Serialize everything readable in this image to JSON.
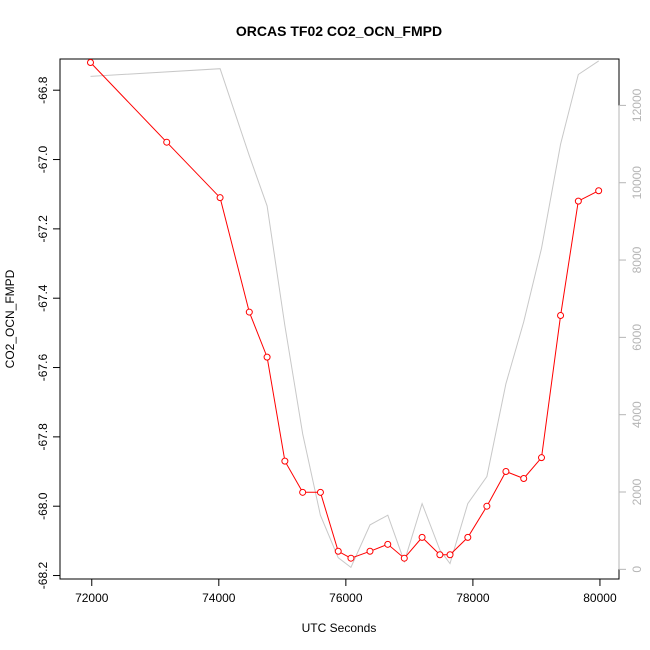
{
  "chart_data": {
    "type": "line",
    "title": "ORCAS TF02 CO2_OCN_FMPD",
    "xlabel": "UTC Seconds",
    "ylabel": "CO2_OCN_FMPD",
    "xlim": [
      71500,
      80300
    ],
    "ylim": [
      -68.21,
      -66.71
    ],
    "y2lim": [
      -250,
      13200
    ],
    "x_ticks": [
      72000,
      74000,
      76000,
      78000,
      80000
    ],
    "y_ticks": [
      -66.8,
      -67.0,
      -67.2,
      -67.4,
      -67.6,
      -67.8,
      -68.0,
      -68.2
    ],
    "y2_ticks": [
      0,
      2000,
      4000,
      6000,
      8000,
      10000,
      12000
    ],
    "x_tick_labels": [
      "72000",
      "74000",
      "76000",
      "78000",
      "80000"
    ],
    "y_tick_labels": [
      "-66.8",
      "-67.0",
      "-67.2",
      "-67.4",
      "-67.6",
      "-67.8",
      "-68.0",
      "-68.2"
    ],
    "y2_tick_labels": [
      "0",
      "2000",
      "4000",
      "6000",
      "8000",
      "10000",
      "12000"
    ],
    "series": [
      {
        "axis": "left",
        "color": "#ff0000",
        "marker": "open-circle",
        "x": [
          71980,
          73180,
          74020,
          74480,
          74760,
          75040,
          75320,
          75600,
          75880,
          76080,
          76380,
          76660,
          76920,
          77200,
          77480,
          77640,
          77920,
          78220,
          78520,
          78800,
          79080,
          79380,
          79660,
          79980
        ],
        "y": [
          -66.72,
          -66.95,
          -67.11,
          -67.44,
          -67.57,
          -67.87,
          -67.96,
          -67.96,
          -68.13,
          -68.15,
          -68.13,
          -68.11,
          -68.15,
          -68.09,
          -68.14,
          -68.14,
          -68.09,
          -68.0,
          -67.9,
          -67.92,
          -67.86,
          -67.45,
          -67.12,
          -67.09
        ]
      },
      {
        "axis": "right",
        "color": "#c8c8c8",
        "marker": "none",
        "x": [
          71980,
          74020,
          74480,
          74760,
          75040,
          75320,
          75600,
          75880,
          76080,
          76380,
          76660,
          76920,
          77200,
          77480,
          77640,
          77920,
          78220,
          78520,
          78800,
          79080,
          79380,
          79660,
          79980
        ],
        "y": [
          12750,
          12950,
          10700,
          9400,
          6300,
          3500,
          1400,
          300,
          50,
          1150,
          1400,
          200,
          1700,
          500,
          150,
          1700,
          2400,
          4800,
          6400,
          8300,
          11000,
          12800,
          13150
        ]
      }
    ]
  }
}
